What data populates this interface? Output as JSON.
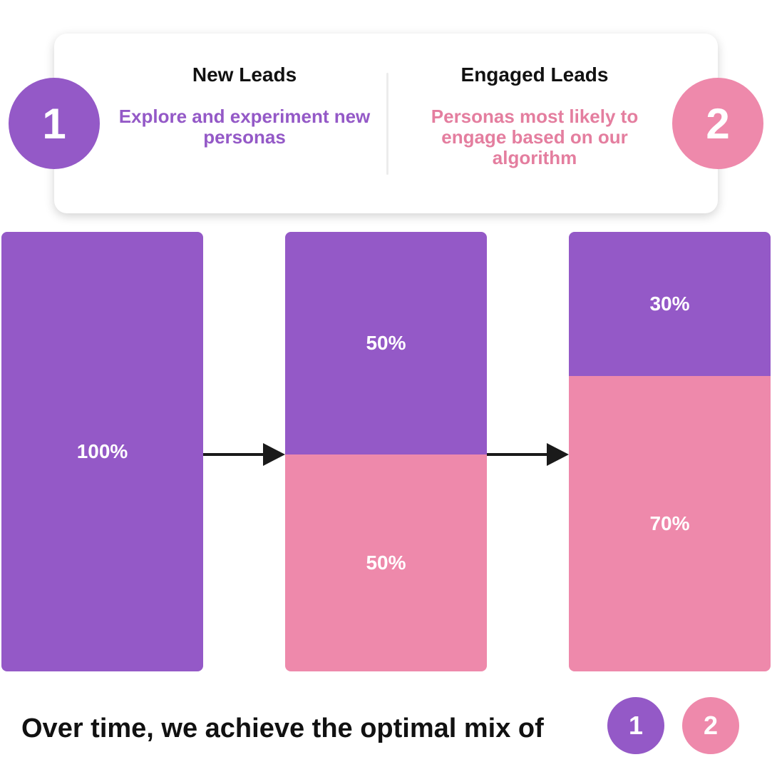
{
  "legend_card": {
    "new_leads": {
      "number": "1",
      "title": "New Leads",
      "description": "Explore and experiment new personas",
      "color": "#9459c7"
    },
    "engaged_leads": {
      "number": "2",
      "title": "Engaged Leads",
      "description": "Personas most likely to engage based on our algorithm",
      "color": "#ee89ab"
    }
  },
  "stages": [
    {
      "segments": [
        {
          "group": "new_leads",
          "percent": 100,
          "label": "100%"
        }
      ]
    },
    {
      "segments": [
        {
          "group": "new_leads",
          "percent": 50,
          "label": "50%"
        },
        {
          "group": "engaged_leads",
          "percent": 50,
          "label": "50%"
        }
      ]
    },
    {
      "segments": [
        {
          "group": "new_leads",
          "percent": 30,
          "label": "30%"
        },
        {
          "group": "engaged_leads",
          "percent": 70,
          "label": "70%"
        }
      ]
    }
  ],
  "footer": {
    "text": "Over time, we achieve the optimal mix of",
    "badge_1": "1",
    "badge_2": "2"
  }
}
